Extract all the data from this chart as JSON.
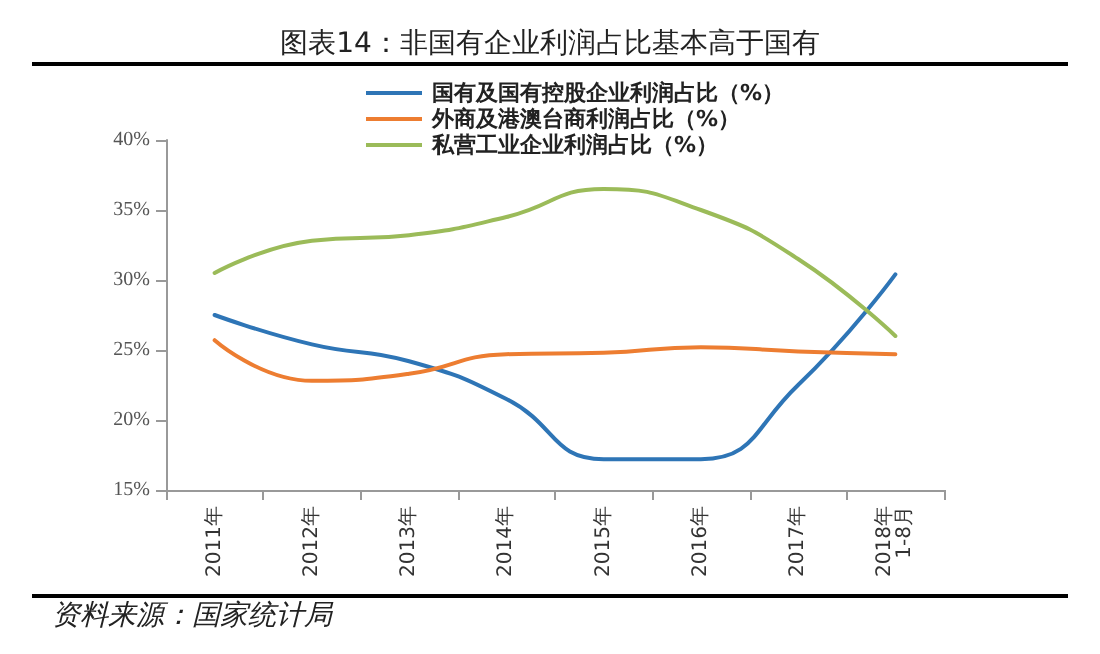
{
  "chart_data": {
    "type": "line",
    "title": "图表14：非国有企业利润占比基本高于国有",
    "categories": [
      "2011年",
      "2012年",
      "2013年",
      "2014年",
      "2015年",
      "2016年",
      "2017年",
      "2018年\n1-8月"
    ],
    "series": [
      {
        "name": "国有及国有控股企业利润占比（%）",
        "color": "#2e75b6",
        "values": [
          27.5,
          25.4,
          24.2,
          21.5,
          17.2,
          17.2,
          22.5,
          30.4
        ]
      },
      {
        "name": "外商及港澳台商利润占比（%）",
        "color": "#ed7d31",
        "values": [
          25.7,
          22.8,
          23.3,
          24.7,
          24.8,
          25.2,
          24.9,
          24.7
        ]
      },
      {
        "name": "私营工业企业利润占比（%）",
        "color": "#9bbb59",
        "values": [
          30.5,
          32.8,
          33.2,
          34.5,
          36.5,
          35.0,
          31.5,
          26.0
        ]
      }
    ],
    "ylim": [
      15,
      40
    ],
    "yticks": [
      {
        "value": 15,
        "label": "15%"
      },
      {
        "value": 20,
        "label": "20%"
      },
      {
        "value": 25,
        "label": "25%"
      },
      {
        "value": 30,
        "label": "30%"
      },
      {
        "value": 35,
        "label": "35%"
      },
      {
        "value": 40,
        "label": "40%"
      }
    ],
    "grid": false,
    "legend": "top",
    "marker": "none",
    "line_style": "solid",
    "annotations": [
      "资料来源：国家统计局"
    ]
  }
}
